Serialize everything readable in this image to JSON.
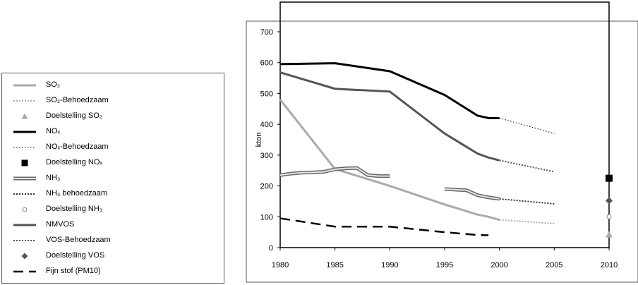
{
  "chart_data": {
    "type": "line",
    "xlabel": "",
    "ylabel": "kton",
    "xlim": [
      1980,
      2010
    ],
    "ylim": [
      0,
      700
    ],
    "xticks": [
      "1980",
      "1985",
      "1990",
      "1995",
      "2000",
      "2005",
      "2010"
    ],
    "yticks": [
      "0",
      "100",
      "200",
      "300",
      "400",
      "500",
      "600",
      "700"
    ],
    "grid": false,
    "legend_position": "left",
    "series": [
      {
        "name": "SO₂",
        "style": "solid",
        "color": "#aaaaaa",
        "points": [
          [
            1980,
            480
          ],
          [
            1985,
            255
          ],
          [
            1990,
            200
          ],
          [
            1995,
            140
          ],
          [
            1998,
            107
          ],
          [
            1999,
            100
          ],
          [
            2000,
            90
          ]
        ]
      },
      {
        "name": "SO₂-Behoedzaam",
        "style": "dotted",
        "color": "#aaaaaa",
        "points": [
          [
            2000,
            90
          ],
          [
            2005,
            78
          ]
        ]
      },
      {
        "name": "Doelstelling SO₂",
        "style": "marker-triangle",
        "color": "#aaaaaa",
        "points": [
          [
            2010,
            42
          ]
        ]
      },
      {
        "name": "NOₓ",
        "style": "solid-thick",
        "color": "#000000",
        "points": [
          [
            1980,
            595
          ],
          [
            1985,
            598
          ],
          [
            1990,
            572
          ],
          [
            1995,
            495
          ],
          [
            1998,
            428
          ],
          [
            1999,
            420
          ],
          [
            2000,
            420
          ]
        ]
      },
      {
        "name": "NOₓ-Behoedzaam",
        "style": "dotted-fine",
        "color": "#000000",
        "points": [
          [
            2000,
            420
          ],
          [
            2005,
            370
          ]
        ]
      },
      {
        "name": "Doelstelling NOₓ",
        "style": "marker-square",
        "color": "#000000",
        "points": [
          [
            2010,
            225
          ]
        ]
      },
      {
        "name": "NH₃",
        "style": "double",
        "color": "#888888",
        "segments": [
          [
            [
              1980,
              235
            ],
            [
              1981,
              240
            ],
            [
              1982,
              243
            ],
            [
              1983,
              244
            ],
            [
              1984,
              246
            ],
            [
              1985,
              254
            ],
            [
              1986,
              257
            ],
            [
              1987,
              258
            ],
            [
              1988,
              235
            ],
            [
              1989,
              232
            ],
            [
              1990,
              232
            ]
          ],
          [
            [
              1995,
              190
            ],
            [
              1996,
              188
            ],
            [
              1997,
              186
            ],
            [
              1998,
              170
            ],
            [
              1999,
              163
            ],
            [
              2000,
              158
            ]
          ]
        ]
      },
      {
        "name": "NH₃ behoedzaam",
        "style": "dotted",
        "color": "#333333",
        "points": [
          [
            2000,
            158
          ],
          [
            2005,
            142
          ]
        ]
      },
      {
        "name": "Doelstelling NH₃",
        "style": "marker-circle",
        "color": "#888888",
        "points": [
          [
            2010,
            100
          ]
        ]
      },
      {
        "name": "NMVOS",
        "style": "solid-thick",
        "color": "#555555",
        "points": [
          [
            1980,
            568
          ],
          [
            1985,
            515
          ],
          [
            1990,
            506
          ],
          [
            1995,
            370
          ],
          [
            1998,
            305
          ],
          [
            1999,
            292
          ],
          [
            2000,
            283
          ]
        ]
      },
      {
        "name": "VOS-Behoedzaam",
        "style": "dotted",
        "color": "#555555",
        "points": [
          [
            2000,
            283
          ],
          [
            2005,
            246
          ]
        ]
      },
      {
        "name": "Doelstelling VOS",
        "style": "marker-diamond",
        "color": "#555555",
        "points": [
          [
            2010,
            152
          ]
        ]
      },
      {
        "name": "Fijn stof (PM10)",
        "style": "dashed",
        "color": "#000000",
        "points": [
          [
            1980,
            95
          ],
          [
            1985,
            68
          ],
          [
            1988,
            68
          ],
          [
            1990,
            68
          ],
          [
            1995,
            50
          ],
          [
            1998,
            41
          ],
          [
            1999,
            40
          ]
        ]
      }
    ]
  }
}
